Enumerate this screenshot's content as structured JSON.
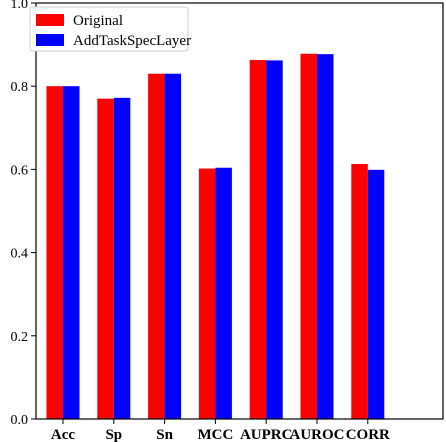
{
  "chart_data": {
    "type": "bar",
    "title": "",
    "xlabel": "",
    "ylabel": "",
    "categories": [
      "Acc",
      "Sp",
      "Sn",
      "MCC",
      "AUPRC",
      "AUROC",
      "CORR"
    ],
    "series": [
      {
        "name": "Original",
        "color": "#ff0000",
        "values": [
          0.8,
          0.77,
          0.83,
          0.602,
          0.863,
          0.878,
          0.613
        ]
      },
      {
        "name": "AddTaskSpecLayer",
        "color": "#0000ff",
        "values": [
          0.8,
          0.772,
          0.83,
          0.604,
          0.862,
          0.877,
          0.599
        ]
      }
    ],
    "ylim": [
      0.0,
      1.0
    ],
    "yticks": [
      "0.0",
      "0.2",
      "0.4",
      "0.6",
      "0.8",
      "1.0"
    ],
    "grid": false,
    "legend_position": "top-left"
  }
}
